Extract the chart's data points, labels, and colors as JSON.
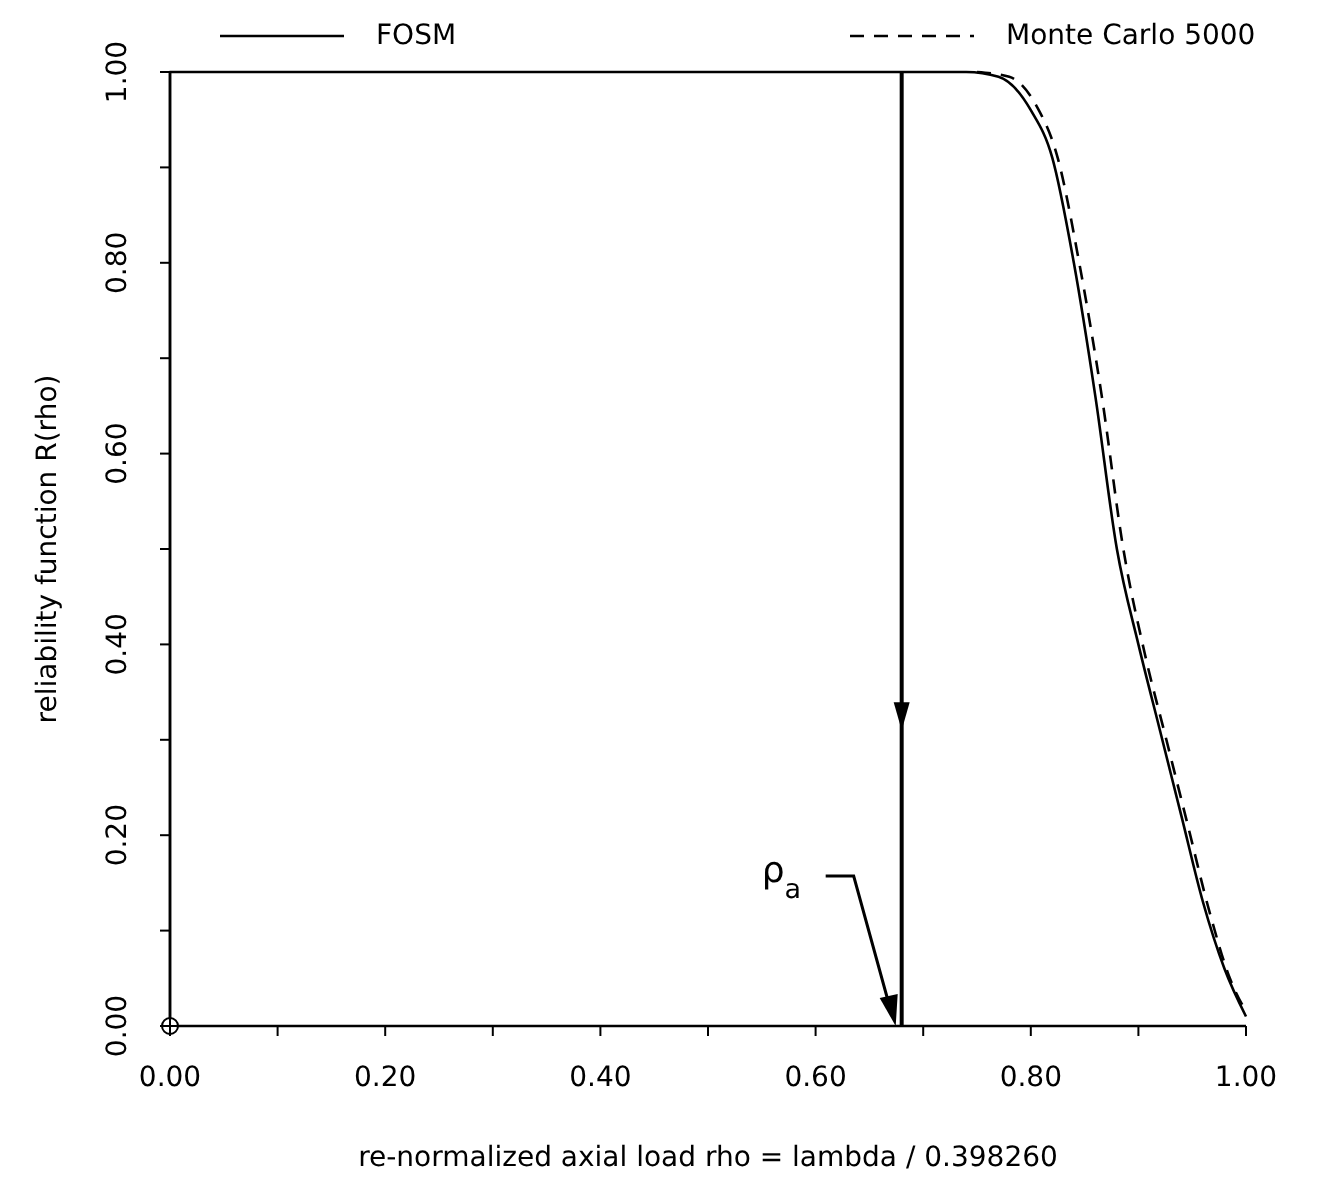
{
  "chart_data": {
    "type": "line",
    "xlabel": "re-normalized axial load rho = lambda / 0.398260",
    "ylabel": "reliability function R(rho)",
    "xlim": [
      0,
      1
    ],
    "ylim": [
      0,
      1
    ],
    "xticks": [
      {
        "value": 0,
        "label": "0.00"
      },
      {
        "value": 0.1,
        "label": null
      },
      {
        "value": 0.2,
        "label": "0.20"
      },
      {
        "value": 0.3,
        "label": null
      },
      {
        "value": 0.4,
        "label": "0.40"
      },
      {
        "value": 0.5,
        "label": null
      },
      {
        "value": 0.6,
        "label": "0.60"
      },
      {
        "value": 0.7,
        "label": null
      },
      {
        "value": 0.8,
        "label": "0.80"
      },
      {
        "value": 0.9,
        "label": null
      },
      {
        "value": 1,
        "label": "1.00"
      }
    ],
    "yticks": [
      {
        "value": 0,
        "label": "0.00"
      },
      {
        "value": 0.1,
        "label": null
      },
      {
        "value": 0.2,
        "label": "0.20"
      },
      {
        "value": 0.3,
        "label": null
      },
      {
        "value": 0.4,
        "label": "0.40"
      },
      {
        "value": 0.5,
        "label": null
      },
      {
        "value": 0.6,
        "label": "0.60"
      },
      {
        "value": 0.7,
        "label": null
      },
      {
        "value": 0.8,
        "label": "0.80"
      },
      {
        "value": 0.9,
        "label": null
      },
      {
        "value": 1,
        "label": "1.00"
      }
    ],
    "series": [
      {
        "name": "FOSM",
        "color": "#000000",
        "line_style": "solid",
        "x": [
          0,
          0,
          0.74,
          0.77,
          0.8,
          0.82,
          0.84,
          0.86,
          0.88,
          0.9,
          0.92,
          0.94,
          0.96,
          0.98,
          1
        ],
        "values": [
          0,
          1,
          1,
          0.995,
          0.96,
          0.91,
          0.8,
          0.66,
          0.5,
          0.4,
          0.31,
          0.22,
          0.13,
          0.06,
          0.01
        ]
      },
      {
        "name": "Monte Carlo 5000",
        "color": "#000000",
        "line_style": "dashed",
        "x": [
          0.75,
          0.78,
          0.805,
          0.825,
          0.845,
          0.866,
          0.886,
          0.906,
          0.926,
          0.946,
          0.966,
          0.985,
          1
        ],
        "values": [
          1,
          0.995,
          0.965,
          0.91,
          0.8,
          0.66,
          0.5,
          0.39,
          0.3,
          0.21,
          0.12,
          0.05,
          0.015
        ]
      }
    ],
    "ref_lines": [
      {
        "axis": "x",
        "value": 0.68,
        "label": "ρ$_{a}$",
        "color": "#000000"
      }
    ],
    "legend": "top",
    "grid": false,
    "marker": "none"
  }
}
